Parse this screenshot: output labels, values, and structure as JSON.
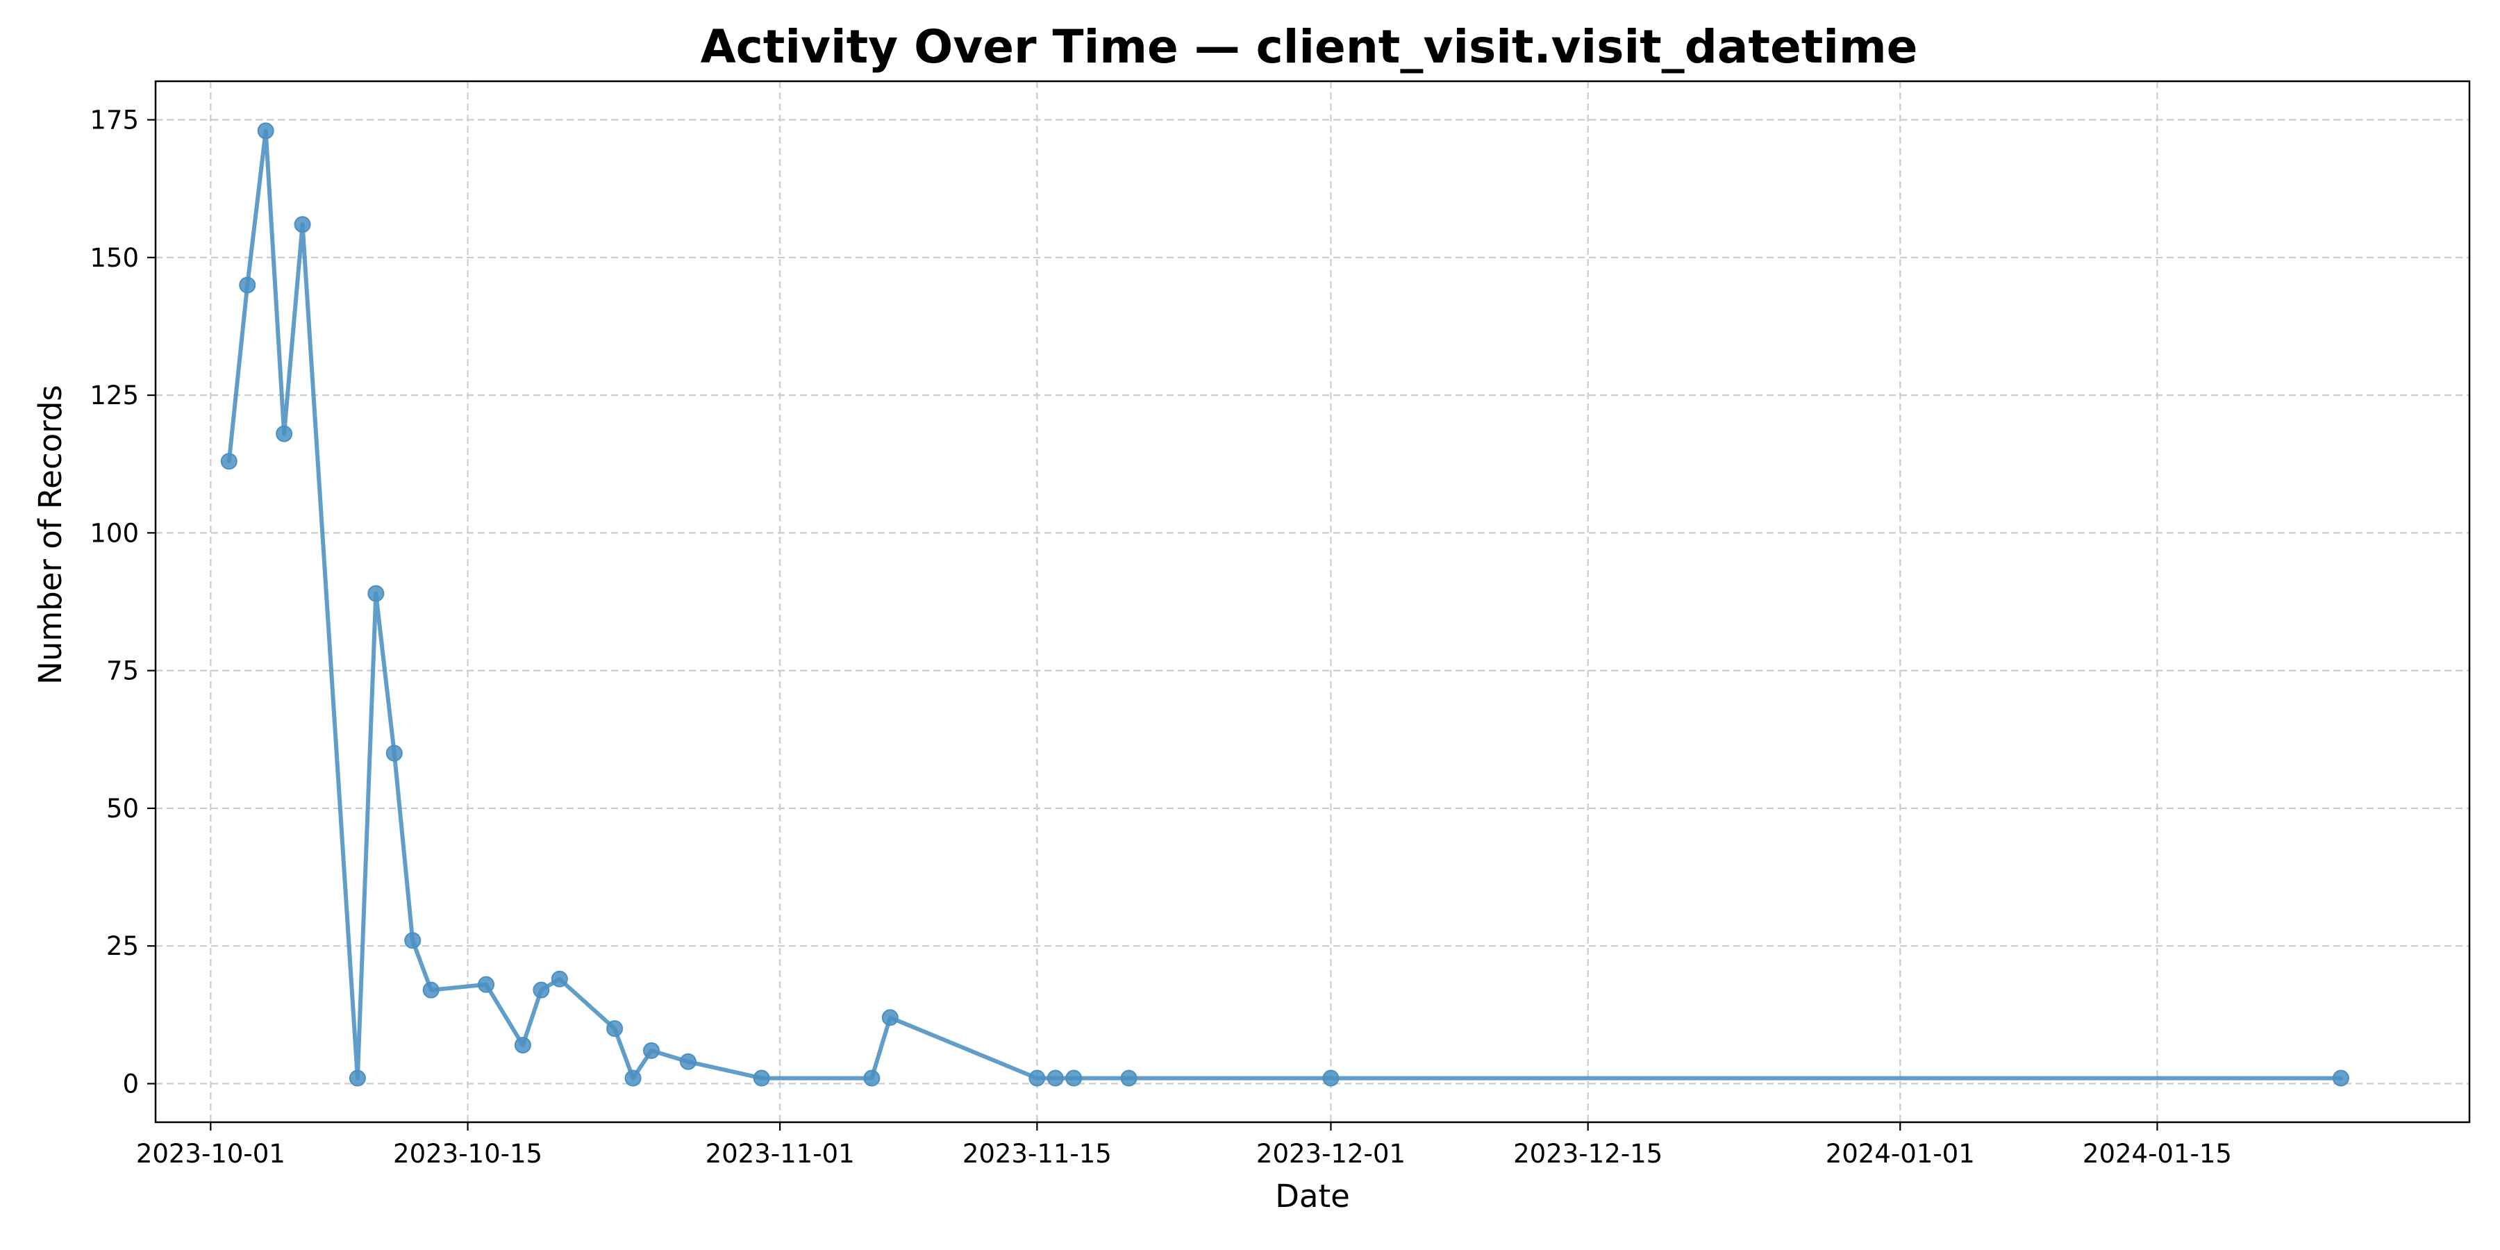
{
  "chart_data": {
    "type": "line",
    "title": "Activity Over Time — client_visit.visit_datetime",
    "xlabel": "Date",
    "ylabel": "Number of Records",
    "x_axis_type": "date",
    "xlim": [
      "2023-09-28",
      "2024-02-01"
    ],
    "ylim": [
      -7,
      182
    ],
    "xticks": [
      {
        "date": "2023-10-01",
        "label": "2023-10-01"
      },
      {
        "date": "2023-10-15",
        "label": "2023-10-15"
      },
      {
        "date": "2023-11-01",
        "label": "2023-11-01"
      },
      {
        "date": "2023-11-15",
        "label": "2023-11-15"
      },
      {
        "date": "2023-12-01",
        "label": "2023-12-01"
      },
      {
        "date": "2023-12-15",
        "label": "2023-12-15"
      },
      {
        "date": "2024-01-01",
        "label": "2024-01-01"
      },
      {
        "date": "2024-01-15",
        "label": "2024-01-15"
      }
    ],
    "yticks": [
      {
        "value": 0,
        "label": "0"
      },
      {
        "value": 25,
        "label": "25"
      },
      {
        "value": 50,
        "label": "50"
      },
      {
        "value": 75,
        "label": "75"
      },
      {
        "value": 100,
        "label": "100"
      },
      {
        "value": 125,
        "label": "125"
      },
      {
        "value": 150,
        "label": "150"
      },
      {
        "value": 175,
        "label": "175"
      }
    ],
    "grid": true,
    "series": [
      {
        "color": "#4a90c2",
        "marker": "circle",
        "points": [
          {
            "x": "2023-10-02",
            "y": 113
          },
          {
            "x": "2023-10-03",
            "y": 145
          },
          {
            "x": "2023-10-04",
            "y": 173
          },
          {
            "x": "2023-10-05",
            "y": 118
          },
          {
            "x": "2023-10-06",
            "y": 156
          },
          {
            "x": "2023-10-09",
            "y": 1
          },
          {
            "x": "2023-10-10",
            "y": 89
          },
          {
            "x": "2023-10-11",
            "y": 60
          },
          {
            "x": "2023-10-12",
            "y": 26
          },
          {
            "x": "2023-10-13",
            "y": 17
          },
          {
            "x": "2023-10-16",
            "y": 18
          },
          {
            "x": "2023-10-18",
            "y": 7
          },
          {
            "x": "2023-10-19",
            "y": 17
          },
          {
            "x": "2023-10-20",
            "y": 19
          },
          {
            "x": "2023-10-23",
            "y": 10
          },
          {
            "x": "2023-10-24",
            "y": 1
          },
          {
            "x": "2023-10-25",
            "y": 6
          },
          {
            "x": "2023-10-27",
            "y": 4
          },
          {
            "x": "2023-10-31",
            "y": 1
          },
          {
            "x": "2023-11-06",
            "y": 1
          },
          {
            "x": "2023-11-07",
            "y": 12
          },
          {
            "x": "2023-11-15",
            "y": 1
          },
          {
            "x": "2023-11-16",
            "y": 1
          },
          {
            "x": "2023-11-17",
            "y": 1
          },
          {
            "x": "2023-11-20",
            "y": 1
          },
          {
            "x": "2023-12-01",
            "y": 1
          },
          {
            "x": "2024-01-25",
            "y": 1
          }
        ]
      }
    ]
  }
}
